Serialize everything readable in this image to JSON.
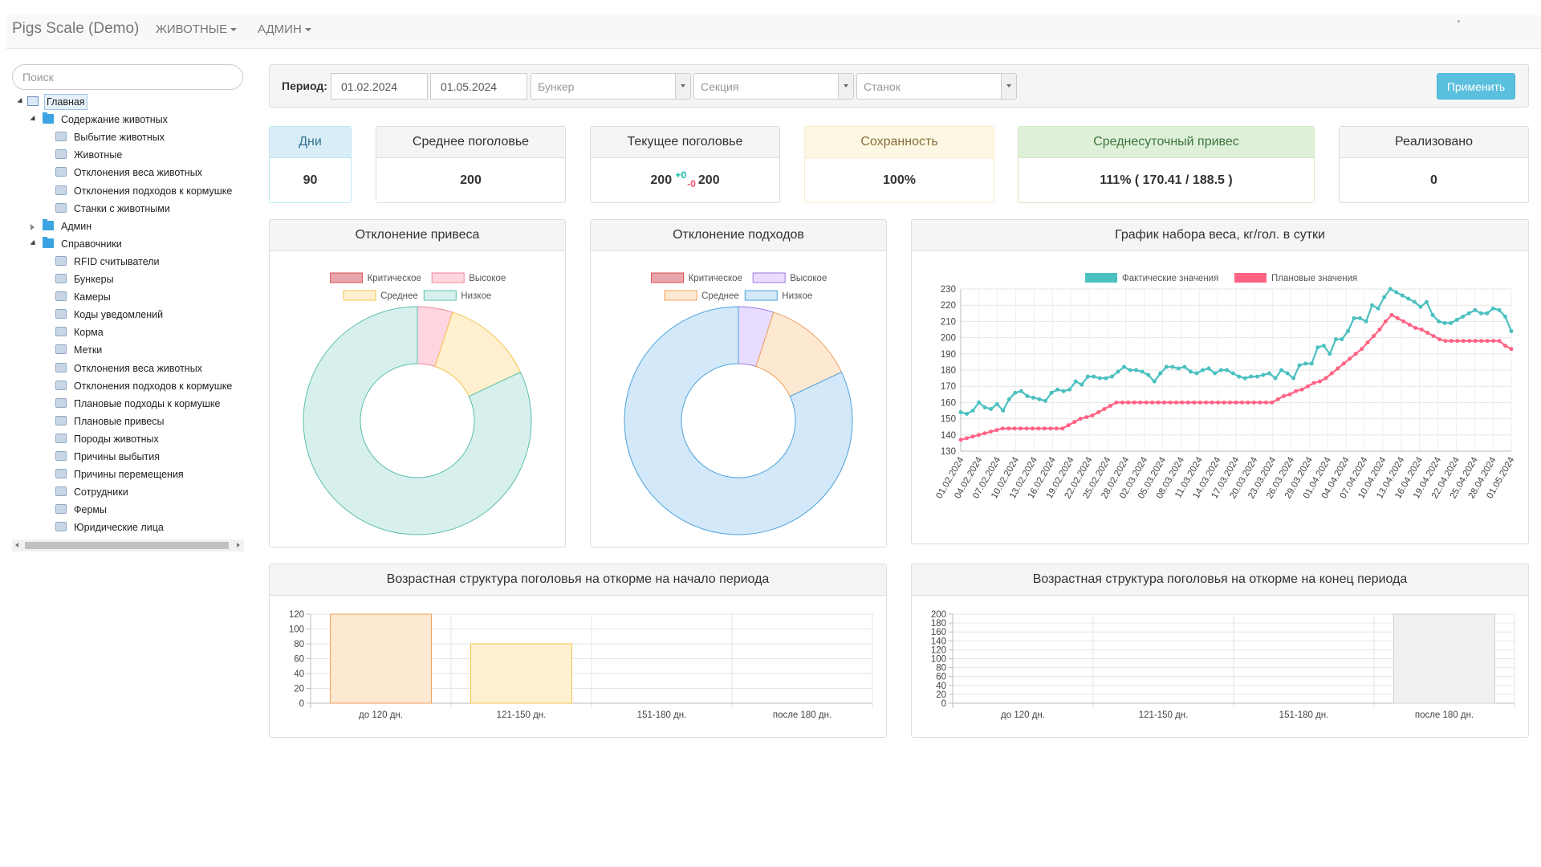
{
  "navbar": {
    "brand": "Pigs Scale (Demo)",
    "menu": [
      "ЖИВОТНЫЕ",
      "АДМИН"
    ]
  },
  "sidebar": {
    "search_placeholder": "Поиск",
    "tree": [
      {
        "label": "Главная",
        "level": 0,
        "expander": "open",
        "icon": "home-icon",
        "selected": true
      },
      {
        "label": "Содержание животных",
        "level": 1,
        "expander": "open",
        "icon": "folder-icon"
      },
      {
        "label": "Выбытие животных",
        "level": 2,
        "icon": "truck-icon"
      },
      {
        "label": "Животные",
        "level": 2,
        "icon": "pig-icon"
      },
      {
        "label": "Отклонения веса животных",
        "level": 2,
        "icon": "grid-icon"
      },
      {
        "label": "Отклонения подходов к кормушке",
        "level": 2,
        "icon": "grid-icon"
      },
      {
        "label": "Станки с животными",
        "level": 2,
        "icon": "table-icon"
      },
      {
        "label": "Админ",
        "level": 1,
        "expander": "closed",
        "icon": "folder-icon"
      },
      {
        "label": "Справочники",
        "level": 1,
        "expander": "open",
        "icon": "folder-icon"
      },
      {
        "label": "RFID считыватели",
        "level": 2,
        "icon": "rfid-icon"
      },
      {
        "label": "Бункеры",
        "level": 2,
        "icon": "bunker-icon"
      },
      {
        "label": "Камеры",
        "level": 2,
        "icon": "camera-icon"
      },
      {
        "label": "Коды уведомлений",
        "level": 2,
        "icon": "bell-icon"
      },
      {
        "label": "Корма",
        "level": 2,
        "icon": "feed-icon"
      },
      {
        "label": "Метки",
        "level": 2,
        "icon": "tag-icon"
      },
      {
        "label": "Отклонения веса животных",
        "level": 2,
        "icon": "grid-icon"
      },
      {
        "label": "Отклонения подходов к кормушке",
        "level": 2,
        "icon": "grid-icon"
      },
      {
        "label": "Плановые подходы к кормушке",
        "level": 2,
        "icon": "document-icon"
      },
      {
        "label": "Плановые привесы",
        "level": 2,
        "icon": "document-icon"
      },
      {
        "label": "Породы животных",
        "level": 2,
        "icon": "pig-icon"
      },
      {
        "label": "Причины выбытия",
        "level": 2,
        "icon": "info-icon"
      },
      {
        "label": "Причины перемещения",
        "level": 2,
        "icon": "info-icon"
      },
      {
        "label": "Сотрудники",
        "level": 2,
        "icon": "user-icon"
      },
      {
        "label": "Фермы",
        "level": 2,
        "icon": "farm-icon"
      },
      {
        "label": "Юридические лица",
        "level": 2,
        "icon": "building-icon"
      }
    ]
  },
  "filters": {
    "period_label": "Период:",
    "date_from": "01.02.2024",
    "date_to": "01.05.2024",
    "bunker_placeholder": "Бункер",
    "section_placeholder": "Секция",
    "stall_placeholder": "Станок",
    "apply_label": "Применить"
  },
  "stats": {
    "days": {
      "label": "Дни",
      "value": "90"
    },
    "avg_herd": {
      "label": "Среднее поголовье",
      "value": "200"
    },
    "current_herd": {
      "label": "Текущее поголовье",
      "value": "200",
      "plus": "+0",
      "minus": "-0",
      "value2": "200"
    },
    "safety": {
      "label": "Сохранность",
      "value": "100%"
    },
    "daily_gain": {
      "label": "Среднесуточный привес",
      "value": "111% ( 170.41 / 188.5 )"
    },
    "sold": {
      "label": "Реализовано",
      "value": "0"
    }
  },
  "colors": {
    "teal": "#4bc0c0",
    "pink": "#ff6384",
    "critical": "#e8a5ae",
    "high": "#ffd6e0",
    "medium": "#fff1d0",
    "low": "#d7f0ee",
    "violet_high": "#e8dcff",
    "orange_medium": "#fde8d2",
    "blue_low": "#d3e8f8"
  },
  "chart_data": [
    {
      "type": "pie",
      "title": "Отклонение привеса",
      "legend": [
        "Критическое",
        "Высокое",
        "Среднее",
        "Низкое"
      ],
      "values": [
        0,
        5,
        13,
        82
      ]
    },
    {
      "type": "pie",
      "title": "Отклонение подходов",
      "legend": [
        "Критическое",
        "Высокое",
        "Среднее",
        "Низкое"
      ],
      "values": [
        0,
        5,
        13,
        82
      ]
    },
    {
      "type": "line",
      "title": "График набора веса, кг/гол. в сутки",
      "legend": [
        "Фактические значения",
        "Плановые значения"
      ],
      "ylim": [
        130,
        230
      ],
      "yticks": [
        130,
        140,
        150,
        160,
        170,
        180,
        190,
        200,
        210,
        220,
        230
      ],
      "xticks": [
        "01.02.2024",
        "04.02.2024",
        "07.02.2024",
        "10.02.2024",
        "13.02.2024",
        "16.02.2024",
        "19.02.2024",
        "22.02.2024",
        "25.02.2024",
        "28.02.2024",
        "02.03.2024",
        "05.03.2024",
        "08.03.2024",
        "11.03.2024",
        "14.03.2024",
        "17.03.2024",
        "20.03.2024",
        "23.03.2024",
        "26.03.2024",
        "29.03.2024",
        "01.04.2024",
        "04.04.2024",
        "07.04.2024",
        "10.04.2024",
        "13.04.2024",
        "16.04.2024",
        "19.04.2024",
        "22.04.2024",
        "25.04.2024",
        "28.04.2024",
        "01.05.2024"
      ],
      "series": [
        {
          "name": "Фактические значения",
          "values": [
            154,
            153,
            155,
            160,
            157,
            156,
            159,
            155,
            162,
            166,
            167,
            164,
            163,
            162,
            161,
            166,
            168,
            167,
            168,
            173,
            171,
            176,
            176,
            175,
            175,
            176,
            179,
            182,
            180,
            180,
            179,
            177,
            173,
            178,
            182,
            182,
            181,
            182,
            179,
            178,
            180,
            181,
            178,
            180,
            180,
            178,
            176,
            175,
            176,
            176,
            177,
            178,
            175,
            180,
            178,
            175,
            183,
            184,
            184,
            194,
            195,
            190,
            199,
            199,
            204,
            212,
            212,
            210,
            220,
            218,
            225,
            230,
            228,
            226,
            224,
            222,
            219,
            222,
            214,
            210,
            209,
            209,
            211,
            213,
            215,
            217,
            215,
            215,
            218,
            217,
            213,
            204
          ]
        },
        {
          "name": "Плановые значения",
          "values": [
            137,
            138,
            139,
            140,
            141,
            142,
            143,
            144,
            144,
            144,
            144,
            144,
            144,
            144,
            144,
            144,
            144,
            144,
            146,
            148,
            150,
            151,
            152,
            154,
            156,
            158,
            160,
            160,
            160,
            160,
            160,
            160,
            160,
            160,
            160,
            160,
            160,
            160,
            160,
            160,
            160,
            160,
            160,
            160,
            160,
            160,
            160,
            160,
            160,
            160,
            160,
            160,
            160,
            162,
            164,
            165,
            167,
            168,
            170,
            172,
            173,
            175,
            178,
            181,
            184,
            187,
            190,
            193,
            197,
            201,
            205,
            210,
            214,
            212,
            210,
            208,
            206,
            205,
            203,
            201,
            199,
            198,
            198,
            198,
            198,
            198,
            198,
            198,
            198,
            198,
            198,
            195,
            193
          ]
        }
      ]
    },
    {
      "type": "bar",
      "title": "Возрастная структура поголовья на откорме на начало периода",
      "categories": [
        "до 120 дн.",
        "121-150 дн.",
        "151-180 дн.",
        "после 180 дн."
      ],
      "values": [
        120,
        80,
        0,
        0
      ],
      "ylim": [
        0,
        120
      ],
      "yticks": [
        0,
        20,
        40,
        60,
        80,
        100,
        120
      ]
    },
    {
      "type": "bar",
      "title": "Возрастная структура поголовья на откорме на конец периода",
      "categories": [
        "до 120 дн.",
        "121-150 дн.",
        "151-180 дн.",
        "после 180 дн."
      ],
      "values": [
        0,
        0,
        0,
        200
      ],
      "ylim": [
        0,
        200
      ],
      "yticks": [
        0,
        20,
        40,
        60,
        80,
        100,
        120,
        140,
        160,
        180,
        200
      ]
    }
  ]
}
